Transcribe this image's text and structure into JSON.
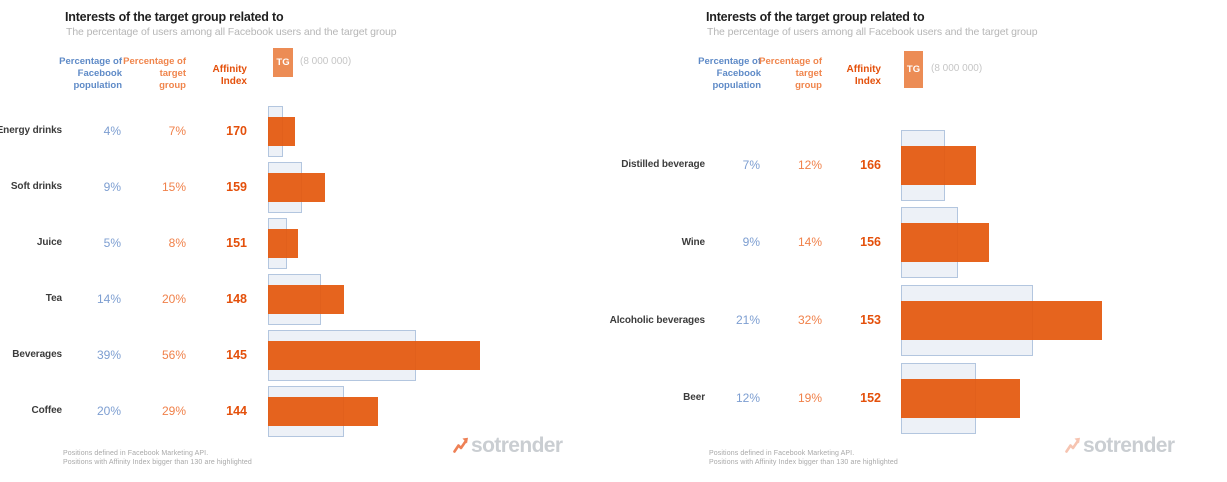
{
  "chart_data": [
    {
      "type": "bar",
      "orientation": "horizontal",
      "title": "Interests of the target group related to",
      "subtitle": "The percentage of users among all Facebook users and the target group",
      "column_headers": {
        "facebook": "Percentage of\nFacebook\npopulation",
        "target": "Percentage of\ntarget\ngroup",
        "affinity": "Affinity\nIndex"
      },
      "legend": {
        "tg_label": "TG",
        "tg_value": "(8 000 000)",
        "position": "top"
      },
      "categories": [
        "Energy drinks",
        "Soft drinks",
        "Juice",
        "Tea",
        "Beverages",
        "Coffee"
      ],
      "series": [
        {
          "name": "Percentage of Facebook population",
          "unit": "%",
          "values": [
            4,
            9,
            5,
            14,
            39,
            20
          ]
        },
        {
          "name": "Percentage of target group",
          "unit": "%",
          "values": [
            7,
            15,
            8,
            20,
            56,
            29
          ]
        }
      ],
      "affinity_index": {
        "label": "Affinity Index",
        "values": [
          170,
          159,
          151,
          148,
          145,
          144
        ],
        "highlight_threshold": 130
      },
      "footer_lines": [
        "Positions defined in Facebook Marketing API.",
        "Positions with Affinity Index bigger than 130 are highlighted"
      ],
      "watermark": "sotrender",
      "layout_hints": {
        "grid": false,
        "bars_normalized_to_chart_max": true,
        "value_axis_hidden": true
      }
    },
    {
      "type": "bar",
      "orientation": "horizontal",
      "title": "Interests of the target group related to",
      "subtitle": "The percentage of users among all Facebook users and the target group",
      "column_headers": {
        "facebook": "Percentage of\nFacebook\npopulation",
        "target": "Percentage of\ntarget\ngroup",
        "affinity": "Affinity\nIndex"
      },
      "legend": {
        "tg_label": "TG",
        "tg_value": "(8 000 000)",
        "position": "top"
      },
      "categories": [
        "Distilled beverage",
        "Wine",
        "Alcoholic beverages",
        "Beer"
      ],
      "series": [
        {
          "name": "Percentage of Facebook population",
          "unit": "%",
          "values": [
            7,
            9,
            21,
            12
          ]
        },
        {
          "name": "Percentage of target group",
          "unit": "%",
          "values": [
            12,
            14,
            32,
            19
          ]
        }
      ],
      "affinity_index": {
        "label": "Affinity Index",
        "values": [
          166,
          156,
          153,
          152
        ],
        "highlight_threshold": 130
      },
      "footer_lines": [
        "Positions defined in Facebook Marketing API.",
        "Positions with Affinity Index bigger than 130 are highlighted"
      ],
      "watermark": "sotrender",
      "layout_hints": {
        "grid": false,
        "bars_normalized_to_chart_max": true,
        "value_axis_hidden": true
      }
    }
  ],
  "colors": {
    "facebook_blue": "#7d9ed1",
    "facebook_header_blue": "#5e8ac7",
    "target_orange": "#f0814a",
    "affinity_orange": "#e4500b",
    "bar_orange": "#e4580d",
    "bar_background_fill": "#edf1f7",
    "bar_background_border": "#b3c6df",
    "tg_box_orange": "#ec8c55",
    "watermark_gray": "#caced2",
    "logo_arrow_left": "#ee8055",
    "logo_arrow_right": "#f6c4b1"
  }
}
